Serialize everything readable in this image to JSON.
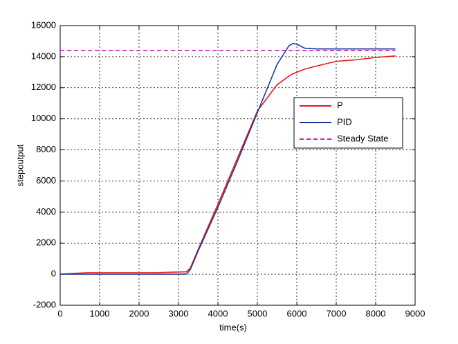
{
  "chart_data": {
    "type": "line",
    "xlabel": "time(s)",
    "ylabel": "stepoutput",
    "x": [
      0,
      700,
      2400,
      3200,
      3300,
      3500,
      4000,
      4500,
      5000,
      5500,
      5800,
      5900,
      6000,
      6200,
      6500,
      7000,
      7500,
      8000,
      8500
    ],
    "series": [
      {
        "name": "P",
        "color": "#e8171b",
        "line_style": "solid",
        "values": [
          0,
          100,
          100,
          150,
          400,
          1600,
          4500,
          7500,
          10500,
          12200,
          12750,
          12900,
          13000,
          13200,
          13400,
          13700,
          13800,
          13950,
          14050
        ]
      },
      {
        "name": "PID",
        "color": "#1c3a9a",
        "line_style": "solid",
        "values": [
          0,
          0,
          0,
          0,
          300,
          1500,
          4300,
          7300,
          10400,
          13500,
          14700,
          14850,
          14800,
          14550,
          14500,
          14500,
          14500,
          14500,
          14500
        ]
      },
      {
        "name": "Steady State",
        "color": "#c21fb8",
        "line_style": "dashed",
        "values": [
          14400,
          14400,
          14400,
          14400,
          14400,
          14400,
          14400,
          14400,
          14400,
          14400,
          14400,
          14400,
          14400,
          14400,
          14400,
          14400,
          14400,
          14400,
          14400
        ]
      }
    ],
    "xlim": [
      0,
      9000
    ],
    "xticks": [
      0,
      1000,
      2000,
      3000,
      4000,
      5000,
      6000,
      7000,
      8000,
      9000
    ],
    "ylim": [
      -2000,
      16000
    ],
    "yticks": [
      -2000,
      0,
      2000,
      4000,
      6000,
      8000,
      10000,
      12000,
      14000,
      16000
    ],
    "grid": true,
    "legend_position": "east"
  }
}
